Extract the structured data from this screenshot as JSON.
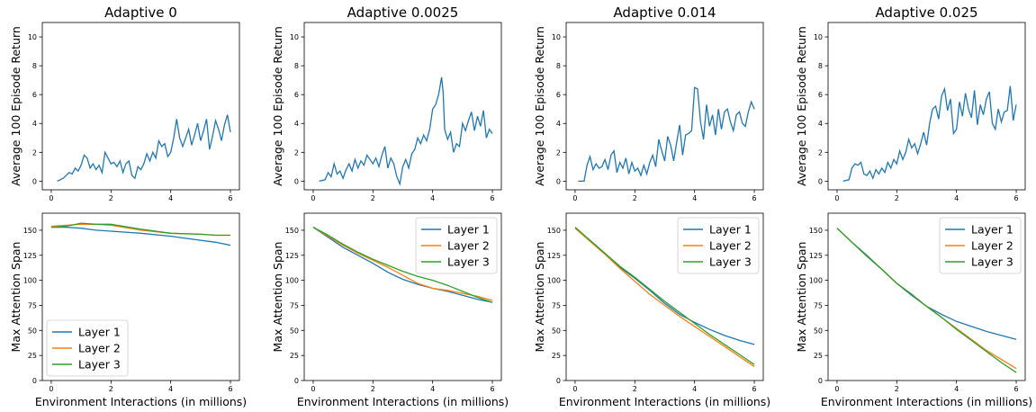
{
  "colors": {
    "layer1": "#1f77b4",
    "layer2": "#ff7f0e",
    "layer3": "#2ca02c"
  },
  "chart_data": [
    {
      "type": "line",
      "panel": "return",
      "title": "Adaptive 0",
      "xlabel": "",
      "ylabel": "Average 100 Episode Return",
      "xlim": [
        -0.3,
        6.3
      ],
      "ylim": [
        -0.6,
        11
      ],
      "xticks": [
        0,
        2,
        4,
        6
      ],
      "yticks": [
        0,
        2,
        4,
        6,
        8,
        10
      ],
      "series": [
        {
          "color": "#1f77b4",
          "x": [
            0.2,
            0.4,
            0.6,
            0.7,
            0.8,
            0.9,
            1.0,
            1.1,
            1.2,
            1.3,
            1.4,
            1.5,
            1.6,
            1.7,
            1.8,
            1.9,
            2.0,
            2.1,
            2.2,
            2.3,
            2.4,
            2.5,
            2.6,
            2.7,
            2.8,
            2.9,
            3.0,
            3.1,
            3.2,
            3.3,
            3.4,
            3.5,
            3.6,
            3.7,
            3.8,
            3.9,
            4.0,
            4.1,
            4.2,
            4.3,
            4.4,
            4.5,
            4.6,
            4.7,
            4.8,
            4.9,
            5.0,
            5.1,
            5.2,
            5.3,
            5.4,
            5.5,
            5.6,
            5.7,
            5.8,
            5.9,
            6.0
          ],
          "y": [
            0.0,
            0.2,
            0.6,
            0.5,
            0.9,
            0.7,
            1.1,
            1.8,
            1.6,
            0.9,
            1.2,
            0.8,
            1.1,
            0.6,
            2.0,
            1.6,
            1.2,
            1.3,
            1.0,
            1.4,
            0.6,
            1.2,
            1.4,
            0.4,
            0.2,
            1.0,
            0.8,
            1.2,
            1.9,
            1.4,
            2.0,
            1.6,
            2.8,
            2.4,
            2.6,
            1.7,
            2.0,
            3.0,
            4.3,
            3.0,
            2.4,
            3.0,
            3.6,
            2.5,
            3.2,
            4.0,
            2.8,
            3.5,
            4.3,
            2.2,
            3.1,
            4.2,
            3.6,
            2.8,
            3.9,
            4.6,
            3.4
          ]
        }
      ]
    },
    {
      "type": "line",
      "panel": "return",
      "title": "Adaptive 0.0025",
      "xlabel": "",
      "ylabel": "Average 100 Episode Return",
      "xlim": [
        -0.3,
        6.3
      ],
      "ylim": [
        -0.6,
        11
      ],
      "xticks": [
        0,
        2,
        4,
        6
      ],
      "yticks": [
        0,
        2,
        4,
        6,
        8,
        10
      ],
      "series": [
        {
          "color": "#1f77b4",
          "x": [
            0.2,
            0.4,
            0.5,
            0.6,
            0.7,
            0.8,
            0.9,
            1.0,
            1.1,
            1.2,
            1.3,
            1.4,
            1.5,
            1.6,
            1.7,
            1.8,
            1.9,
            2.0,
            2.1,
            2.2,
            2.3,
            2.4,
            2.5,
            2.6,
            2.7,
            2.8,
            2.9,
            3.0,
            3.1,
            3.2,
            3.3,
            3.4,
            3.5,
            3.6,
            3.7,
            3.8,
            3.9,
            4.0,
            4.1,
            4.2,
            4.3,
            4.35,
            4.4,
            4.5,
            4.6,
            4.7,
            4.8,
            4.9,
            5.0,
            5.1,
            5.2,
            5.3,
            5.4,
            5.5,
            5.6,
            5.7,
            5.8,
            5.9,
            6.0
          ],
          "y": [
            0.0,
            0.1,
            0.6,
            0.3,
            1.2,
            0.5,
            0.7,
            0.2,
            0.8,
            1.2,
            0.7,
            1.5,
            0.9,
            1.4,
            1.1,
            1.8,
            1.5,
            1.2,
            1.6,
            1.0,
            1.8,
            2.4,
            0.9,
            1.6,
            1.2,
            0.3,
            -0.2,
            1.0,
            1.5,
            0.9,
            1.9,
            2.2,
            3.0,
            2.6,
            3.2,
            2.8,
            3.6,
            5.0,
            5.3,
            6.0,
            7.2,
            6.2,
            3.6,
            2.9,
            3.4,
            2.0,
            2.6,
            2.4,
            4.0,
            3.5,
            4.2,
            4.8,
            3.5,
            4.5,
            3.8,
            4.9,
            3.0,
            3.6,
            3.3
          ]
        }
      ]
    },
    {
      "type": "line",
      "panel": "return",
      "title": "Adaptive 0.014",
      "xlabel": "",
      "ylabel": "Average 100 Episode Return",
      "xlim": [
        -0.3,
        6.3
      ],
      "ylim": [
        -0.6,
        11
      ],
      "xticks": [
        0,
        2,
        4,
        6
      ],
      "yticks": [
        0,
        2,
        4,
        6,
        8,
        10
      ],
      "series": [
        {
          "color": "#1f77b4",
          "x": [
            0.1,
            0.3,
            0.4,
            0.5,
            0.6,
            0.7,
            0.8,
            0.9,
            1.0,
            1.1,
            1.2,
            1.3,
            1.4,
            1.5,
            1.6,
            1.7,
            1.8,
            1.9,
            2.0,
            2.1,
            2.2,
            2.3,
            2.4,
            2.5,
            2.6,
            2.7,
            2.8,
            2.9,
            3.0,
            3.1,
            3.2,
            3.3,
            3.4,
            3.5,
            3.6,
            3.7,
            3.8,
            3.9,
            4.0,
            4.1,
            4.2,
            4.3,
            4.4,
            4.5,
            4.6,
            4.7,
            4.8,
            4.9,
            5.0,
            5.1,
            5.2,
            5.3,
            5.4,
            5.5,
            5.6,
            5.7,
            5.8,
            5.9,
            6.0
          ],
          "y": [
            0.0,
            0.0,
            1.1,
            1.7,
            0.8,
            1.2,
            0.9,
            1.0,
            1.5,
            0.8,
            1.8,
            2.1,
            0.6,
            1.3,
            0.9,
            1.6,
            0.5,
            1.3,
            0.7,
            0.9,
            0.4,
            1.1,
            0.5,
            1.3,
            1.8,
            1.0,
            2.9,
            2.1,
            1.4,
            3.1,
            2.5,
            1.4,
            2.7,
            3.9,
            1.8,
            3.2,
            3.3,
            3.5,
            6.5,
            6.4,
            4.1,
            2.9,
            5.3,
            3.8,
            4.6,
            3.2,
            5.0,
            3.6,
            4.8,
            5.0,
            4.1,
            3.5,
            4.6,
            4.8,
            4.0,
            3.8,
            4.8,
            5.5,
            5.0
          ]
        }
      ]
    },
    {
      "type": "line",
      "panel": "return",
      "title": "Adaptive 0.025",
      "xlabel": "",
      "ylabel": "Average 100 Episode Return",
      "xlim": [
        -0.3,
        6.3
      ],
      "ylim": [
        -0.6,
        11
      ],
      "xticks": [
        0,
        2,
        4,
        6
      ],
      "yticks": [
        0,
        2,
        4,
        6,
        8,
        10
      ],
      "series": [
        {
          "color": "#1f77b4",
          "x": [
            0.2,
            0.4,
            0.5,
            0.6,
            0.7,
            0.8,
            0.9,
            1.0,
            1.1,
            1.2,
            1.3,
            1.4,
            1.5,
            1.6,
            1.7,
            1.8,
            1.9,
            2.0,
            2.1,
            2.2,
            2.3,
            2.4,
            2.5,
            2.6,
            2.7,
            2.8,
            2.9,
            3.0,
            3.1,
            3.2,
            3.3,
            3.4,
            3.5,
            3.6,
            3.7,
            3.8,
            3.9,
            4.0,
            4.1,
            4.2,
            4.3,
            4.4,
            4.5,
            4.6,
            4.7,
            4.8,
            4.9,
            5.0,
            5.1,
            5.2,
            5.3,
            5.4,
            5.5,
            5.6,
            5.7,
            5.8,
            5.9,
            6.0
          ],
          "y": [
            0.0,
            0.1,
            0.9,
            1.2,
            1.1,
            1.3,
            0.5,
            0.4,
            0.7,
            0.2,
            0.8,
            0.5,
            0.9,
            0.6,
            1.3,
            0.9,
            1.5,
            1.2,
            2.1,
            1.5,
            2.0,
            2.9,
            2.3,
            2.6,
            1.9,
            2.6,
            3.4,
            2.5,
            4.0,
            5.0,
            5.2,
            4.3,
            5.9,
            6.4,
            4.9,
            5.7,
            3.3,
            3.6,
            5.5,
            4.5,
            6.1,
            5.0,
            4.4,
            6.3,
            3.9,
            5.3,
            4.6,
            5.7,
            6.2,
            4.0,
            3.6,
            5.0,
            4.1,
            4.8,
            4.9,
            6.6,
            4.2,
            5.3
          ]
        }
      ]
    },
    {
      "type": "line",
      "panel": "span",
      "title": "",
      "xlabel": "Environment Interactions (in millions)",
      "ylabel": "Max Attention Span",
      "xlim": [
        -0.3,
        6.3
      ],
      "ylim": [
        0,
        167
      ],
      "xticks": [
        0,
        2,
        4,
        6
      ],
      "yticks": [
        0,
        25,
        50,
        75,
        100,
        125,
        150
      ],
      "legend_position": "lower-left",
      "series": [
        {
          "name": "Layer 1",
          "color": "#1f77b4",
          "x": [
            0,
            0.5,
            1,
            1.5,
            2,
            3,
            4,
            5,
            5.5,
            6
          ],
          "y": [
            153,
            153,
            152,
            150,
            149,
            147,
            144,
            140,
            138,
            135
          ]
        },
        {
          "name": "Layer 2",
          "color": "#ff7f0e",
          "x": [
            0,
            0.5,
            1,
            1.5,
            2,
            3,
            4,
            5,
            5.5,
            6
          ],
          "y": [
            154,
            155,
            156,
            156,
            155,
            150,
            147,
            146,
            145,
            145
          ]
        },
        {
          "name": "Layer 3",
          "color": "#2ca02c",
          "x": [
            0,
            0.5,
            1,
            1.5,
            2,
            3,
            4,
            5,
            5.5,
            6
          ],
          "y": [
            153,
            154,
            157,
            156,
            156,
            151,
            147,
            146,
            145,
            145
          ]
        }
      ]
    },
    {
      "type": "line",
      "panel": "span",
      "title": "",
      "xlabel": "Environment Interactions (in millions)",
      "ylabel": "Max Attention Span",
      "xlim": [
        -0.3,
        6.3
      ],
      "ylim": [
        0,
        167
      ],
      "xticks": [
        0,
        2,
        4,
        6
      ],
      "yticks": [
        0,
        25,
        50,
        75,
        100,
        125,
        150
      ],
      "legend_position": "top-right",
      "series": [
        {
          "name": "Layer 1",
          "color": "#1f77b4",
          "x": [
            0,
            0.5,
            1,
            1.5,
            2,
            2.5,
            3,
            3.5,
            4,
            4.5,
            5,
            5.5,
            6
          ],
          "y": [
            153,
            143,
            133,
            125,
            117,
            108,
            101,
            96,
            92,
            89,
            85,
            81,
            78
          ]
        },
        {
          "name": "Layer 2",
          "color": "#ff7f0e",
          "x": [
            0,
            0.5,
            1,
            1.5,
            2,
            2.5,
            3,
            3.5,
            4,
            4.5,
            5,
            5.5,
            6
          ],
          "y": [
            153,
            144,
            135,
            127,
            120,
            113,
            105,
            97,
            92,
            90,
            87,
            84,
            80
          ]
        },
        {
          "name": "Layer 3",
          "color": "#2ca02c",
          "x": [
            0,
            0.5,
            1,
            1.5,
            2,
            2.5,
            3,
            3.5,
            4,
            4.5,
            5,
            5.5,
            6
          ],
          "y": [
            153,
            145,
            136,
            128,
            121,
            115,
            109,
            104,
            100,
            95,
            89,
            83,
            78
          ]
        }
      ]
    },
    {
      "type": "line",
      "panel": "span",
      "title": "",
      "xlabel": "Environment Interactions (in millions)",
      "ylabel": "Max Attention Span",
      "xlim": [
        -0.3,
        6.3
      ],
      "ylim": [
        0,
        167
      ],
      "xticks": [
        0,
        2,
        4,
        6
      ],
      "yticks": [
        0,
        25,
        50,
        75,
        100,
        125,
        150
      ],
      "legend_position": "top-right",
      "series": [
        {
          "name": "Layer 1",
          "color": "#1f77b4",
          "x": [
            0,
            0.5,
            1,
            1.5,
            2,
            2.5,
            3,
            3.5,
            4,
            4.5,
            5,
            5.5,
            6
          ],
          "y": [
            152,
            140,
            127,
            113,
            102,
            90,
            77,
            66,
            58,
            51,
            45,
            40,
            36
          ]
        },
        {
          "name": "Layer 2",
          "color": "#ff7f0e",
          "x": [
            0,
            0.5,
            1,
            1.5,
            2,
            2.5,
            3,
            3.5,
            4,
            4.5,
            5,
            5.5,
            6
          ],
          "y": [
            152,
            139,
            126,
            112,
            99,
            86,
            75,
            64,
            54,
            44,
            34,
            24,
            14
          ]
        },
        {
          "name": "Layer 3",
          "color": "#2ca02c",
          "x": [
            0,
            0.5,
            1,
            1.5,
            2,
            2.5,
            3,
            3.5,
            4,
            4.5,
            5,
            5.5,
            6
          ],
          "y": [
            153,
            140,
            127,
            114,
            103,
            91,
            79,
            68,
            57,
            46,
            36,
            26,
            16
          ]
        }
      ]
    },
    {
      "type": "line",
      "panel": "span",
      "title": "",
      "xlabel": "Environment Interactions (in millions)",
      "ylabel": "Max Attention Span",
      "xlim": [
        -0.3,
        6.3
      ],
      "ylim": [
        0,
        167
      ],
      "xticks": [
        0,
        2,
        4,
        6
      ],
      "yticks": [
        0,
        25,
        50,
        75,
        100,
        125,
        150
      ],
      "legend_position": "top-right",
      "series": [
        {
          "name": "Layer 1",
          "color": "#1f77b4",
          "x": [
            0,
            0.5,
            1,
            1.5,
            2,
            2.5,
            3,
            3.5,
            4,
            4.5,
            5,
            5.5,
            6
          ],
          "y": [
            152,
            138,
            125,
            111,
            97,
            85,
            74,
            66,
            59,
            54,
            49,
            45,
            41
          ]
        },
        {
          "name": "Layer 2",
          "color": "#ff7f0e",
          "x": [
            0,
            0.5,
            1,
            1.5,
            2,
            2.5,
            3,
            3.5,
            4,
            4.5,
            5,
            5.5,
            6
          ],
          "y": [
            152,
            138,
            124,
            111,
            97,
            86,
            74,
            63,
            52,
            41,
            30,
            21,
            12
          ]
        },
        {
          "name": "Layer 3",
          "color": "#2ca02c",
          "x": [
            0,
            0.5,
            1,
            1.5,
            2,
            2.5,
            3,
            3.5,
            4,
            4.5,
            5,
            5.5,
            6
          ],
          "y": [
            152,
            138,
            124,
            111,
            97,
            86,
            74,
            63,
            51,
            40,
            29,
            18,
            8
          ]
        }
      ]
    }
  ]
}
